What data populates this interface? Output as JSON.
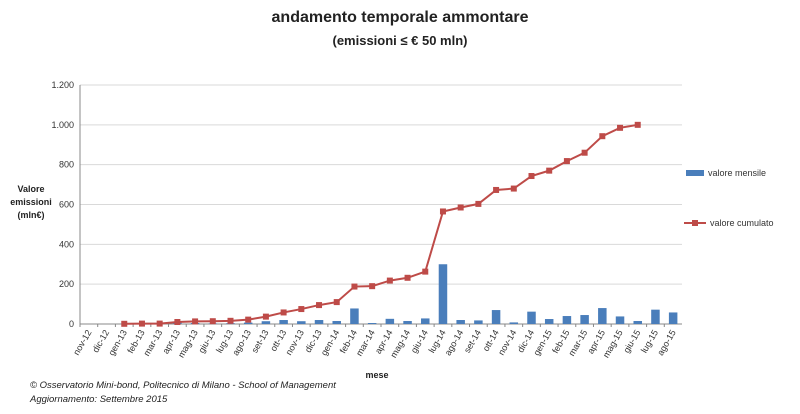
{
  "chart_data": {
    "type": "bar",
    "title": "andamento temporale ammontare",
    "subtitle": "(emissioni ≤ € 50 mln)",
    "ylabel": [
      "Valore",
      "emissioni",
      "(mln€)"
    ],
    "xlabel": "mese",
    "ylim": [
      0,
      1200
    ],
    "yticks": [
      0,
      200,
      400,
      600,
      800,
      1000,
      1200
    ],
    "ytick_labels": [
      "0",
      "200",
      "400",
      "600",
      "800",
      "1.000",
      "1.200"
    ],
    "grid": true,
    "legend_position": "right",
    "categories": [
      "nov-12",
      "dic-12",
      "gen-13",
      "feb-13",
      "mar-13",
      "apr-13",
      "mag-13",
      "giu-13",
      "lug-13",
      "ago-13",
      "set-13",
      "ott-13",
      "nov-13",
      "dic-13",
      "gen-14",
      "feb-14",
      "mar-14",
      "apr-14",
      "mag-14",
      "giu-14",
      "lug-14",
      "ago-14",
      "set-14",
      "ott-14",
      "nov-14",
      "dic-14",
      "gen-15",
      "feb-15",
      "mar-15",
      "apr-15",
      "mag-15",
      "giu-15",
      "lug-15",
      "ago-15"
    ],
    "series": [
      {
        "name": "valore mensile",
        "type": "bar",
        "color": "#4a7ebb",
        "values": [
          0,
          0,
          1,
          2,
          1,
          8,
          5,
          3,
          4,
          7,
          14,
          20,
          14,
          20,
          15,
          78,
          5,
          26,
          15,
          28,
          300,
          20,
          18,
          70,
          8,
          62,
          25,
          40,
          45,
          80,
          38,
          15,
          72,
          58
        ]
      },
      {
        "name": "valore cumulato",
        "type": "line",
        "color": "#be4b48",
        "values": [
          null,
          null,
          1,
          2,
          2,
          10,
          13,
          14,
          16,
          22,
          37,
          58,
          75,
          95,
          110,
          188,
          190,
          218,
          232,
          263,
          565,
          585,
          603,
          673,
          680,
          743,
          770,
          818,
          860,
          943,
          985,
          1000,
          null,
          null
        ]
      }
    ]
  },
  "footer": {
    "line1": "© Osservatorio Mini-bond, Politecnico di Milano - School of Management",
    "line2": "Aggiornamento: Settembre 2015"
  }
}
